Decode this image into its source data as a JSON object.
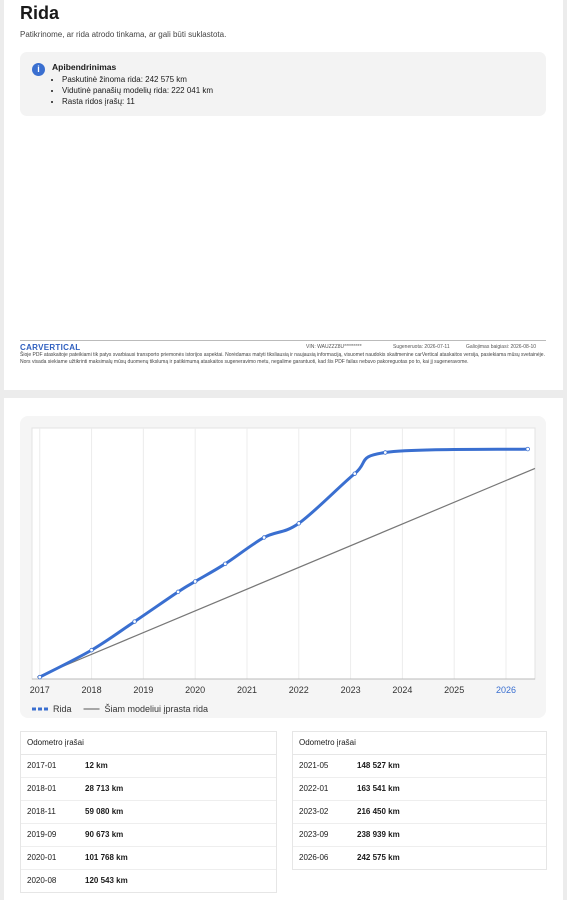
{
  "header": {
    "title": "Rida",
    "subtitle": "Patikrinome, ar rida atrodo tinkama, ar gali būti suklastota."
  },
  "summary": {
    "title": "Apibendrinimas",
    "items": [
      "Paskutinė žinoma rida: 242 575 km",
      "Vidutinė panašių modelių rida: 222 041 km",
      "Rasta ridos įrašų: 11"
    ]
  },
  "footer": {
    "brand": "CARVERTICAL",
    "vin": "VIN: WAUZZZ8U*********",
    "generated": "Sugeneruota: 2026-07-11",
    "expires": "Galiojimas baigiasi: 2026-08-10",
    "disclaimer": "Šioje PDF ataskaitoje pateikiami tik patys svarbiausi transporto priemonės istorijos aspektai. Norėdamas matyti tiksliausią ir naujausią informaciją, visuomet naudokis skaitmenine carVertical ataskaitos versija, pasiekiama mūsų svetainėje. Nors visada siekiame užtikrinti maksimalų mūsų duomenų tikslumą ir patikimumą ataskaitos sugeneravimo metu, negalime garantuoti, kad šis PDF failas nebuvo pakoreguotas po to, kai jį sugeneravome."
  },
  "chart_data": {
    "type": "line",
    "xlim": [
      2016.85,
      2026.56
    ],
    "xticks": [
      2017,
      2018,
      2019,
      2020,
      2021,
      2022,
      2023,
      2024,
      2025,
      2026
    ],
    "ylim": [
      -2000,
      265000
    ],
    "grid": "x",
    "highlight_xtick_color": "#3a6fd0",
    "series": [
      {
        "name": "Rida",
        "color": "#3a6fd0",
        "markers": true,
        "x": [
          2017.0,
          2018.0,
          2018.83,
          2019.67,
          2020.0,
          2020.58,
          2021.33,
          2022.0,
          2023.08,
          2023.67,
          2026.42
        ],
        "values": [
          12,
          28713,
          59080,
          90673,
          101768,
          120543,
          148527,
          163541,
          216450,
          238939,
          242575
        ]
      },
      {
        "name": "Šiam modeliui įprasta rida",
        "color": "#777777",
        "markers": false,
        "x": [
          2016.95,
          2026.56
        ],
        "values": [
          0,
          222041
        ]
      }
    ]
  },
  "tables": {
    "left": {
      "title": "Odometro įrašai",
      "rows": [
        [
          "2017-01",
          "12 km"
        ],
        [
          "2018-01",
          "28 713 km"
        ],
        [
          "2018-11",
          "59 080 km"
        ],
        [
          "2019-09",
          "90 673 km"
        ],
        [
          "2020-01",
          "101 768 km"
        ],
        [
          "2020-08",
          "120 543 km"
        ]
      ]
    },
    "right": {
      "title": "Odometro įrašai",
      "rows": [
        [
          "2021-05",
          "148 527 km"
        ],
        [
          "2022-01",
          "163 541 km"
        ],
        [
          "2023-02",
          "216 450 km"
        ],
        [
          "2023-09",
          "238 939 km"
        ],
        [
          "2026-06",
          "242 575 km"
        ]
      ]
    }
  }
}
